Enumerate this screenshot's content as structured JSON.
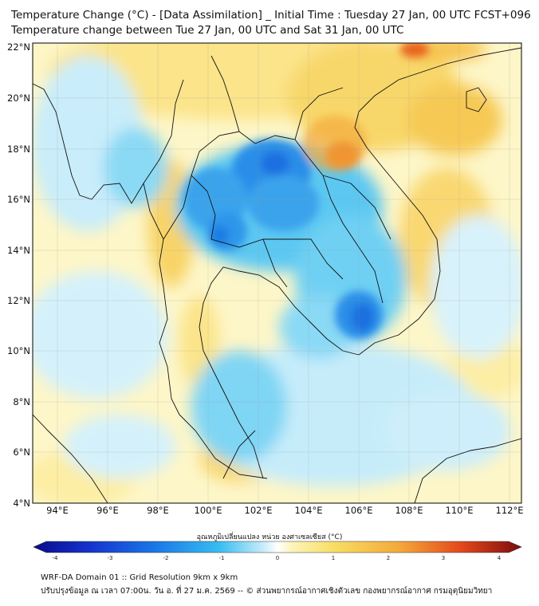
{
  "header": {
    "title_line1": "Temperature Change (°C) - [Data Assimilation] _ Initial Time : Tuesday 27 Jan, 00 UTC FCST+096",
    "title_line2": "Temperature change between Tue 27 Jan, 00 UTC and Sat 31 Jan, 00 UTC"
  },
  "map": {
    "lat_labels": [
      "22°N",
      "20°N",
      "18°N",
      "16°N",
      "14°N",
      "12°N",
      "10°N",
      "8°N",
      "6°N",
      "4°N"
    ],
    "lon_labels": [
      "94°E",
      "96°E",
      "98°E",
      "100°E",
      "102°E",
      "104°E",
      "106°E",
      "108°E",
      "110°E",
      "112°E"
    ],
    "lat_range": [
      4,
      22
    ],
    "lon_range": [
      93,
      112.5
    ],
    "colors": {
      "strong_cool": "#1a6fe0",
      "cool": "#35b8ee",
      "light_cool": "#b7e8f8",
      "neutral": "#ffffff",
      "light_warm": "#fdf0a6",
      "warm": "#f6c955",
      "hot": "#e8641b"
    }
  },
  "colorbar": {
    "label": "อุณหภูมิเปลี่ยนแปลง หน่วย องศาเซลเซียส (°C)",
    "ticks": [
      "-4",
      "-3",
      "-2",
      "-1",
      "0",
      "1",
      "2",
      "3",
      "4"
    ],
    "min": -4,
    "max": 4
  },
  "footer": {
    "line1": "WRF-DA Domain 01 :: Grid Resolution 9km x 9km",
    "line2": "ปรับปรุงข้อมูล ณ เวลา 07:00น. วัน อ. ที่ 27 ม.ค. 2569 -- © ส่วนพยากรณ์อากาศเชิงตัวเลข กองพยากรณ์อากาศ กรมอุตุนิยมวิทยา"
  }
}
